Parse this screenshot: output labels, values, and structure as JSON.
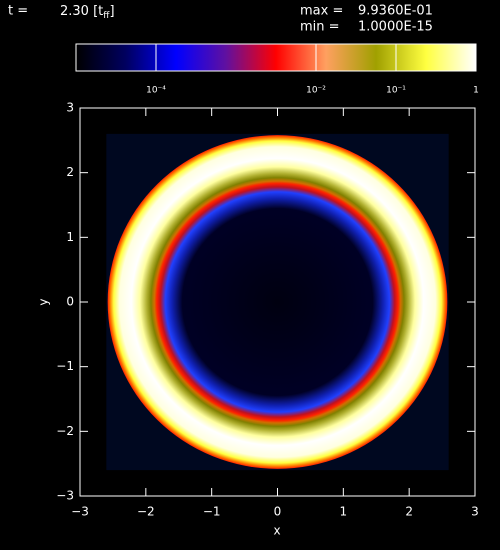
{
  "chart_data": {
    "type": "image",
    "t_label": "t =",
    "t_value": "2.30",
    "t_unit": "[t",
    "t_unit_sub": "ff",
    "t_unit_end": "]",
    "max_label": "max =",
    "max": "9.9360E-01",
    "min_label": "min =",
    "min": "1.0000E-15",
    "colorbar": {
      "log": true,
      "lim": [
        1e-05,
        1
      ],
      "ticks": [
        {
          "value": 0.0001,
          "label": "10⁻⁴"
        },
        {
          "value": 0.01,
          "label": "10⁻²"
        },
        {
          "value": 0.1,
          "label": "10⁻¹"
        },
        1
      ],
      "colors": [
        "#000000",
        "#000060",
        "#0000ff",
        "#6010a0",
        "#ff0000",
        "#ffa060",
        "#a0a000",
        "#ffff40",
        "#ffffff"
      ]
    },
    "x_label": "x",
    "y_label": "y",
    "xlim": [
      -3,
      3
    ],
    "ylim": [
      -3,
      3
    ],
    "xticks": [
      {
        "value": -3,
        "label": "−3"
      },
      {
        "value": -2,
        "label": "−2"
      },
      {
        "value": -1,
        "label": "−1"
      },
      0,
      1,
      2,
      3
    ],
    "yticks": [
      {
        "value": -3,
        "label": "−3"
      },
      {
        "value": -2,
        "label": "−2"
      },
      {
        "value": -1,
        "label": "−1"
      },
      0,
      1,
      2,
      3
    ]
  }
}
